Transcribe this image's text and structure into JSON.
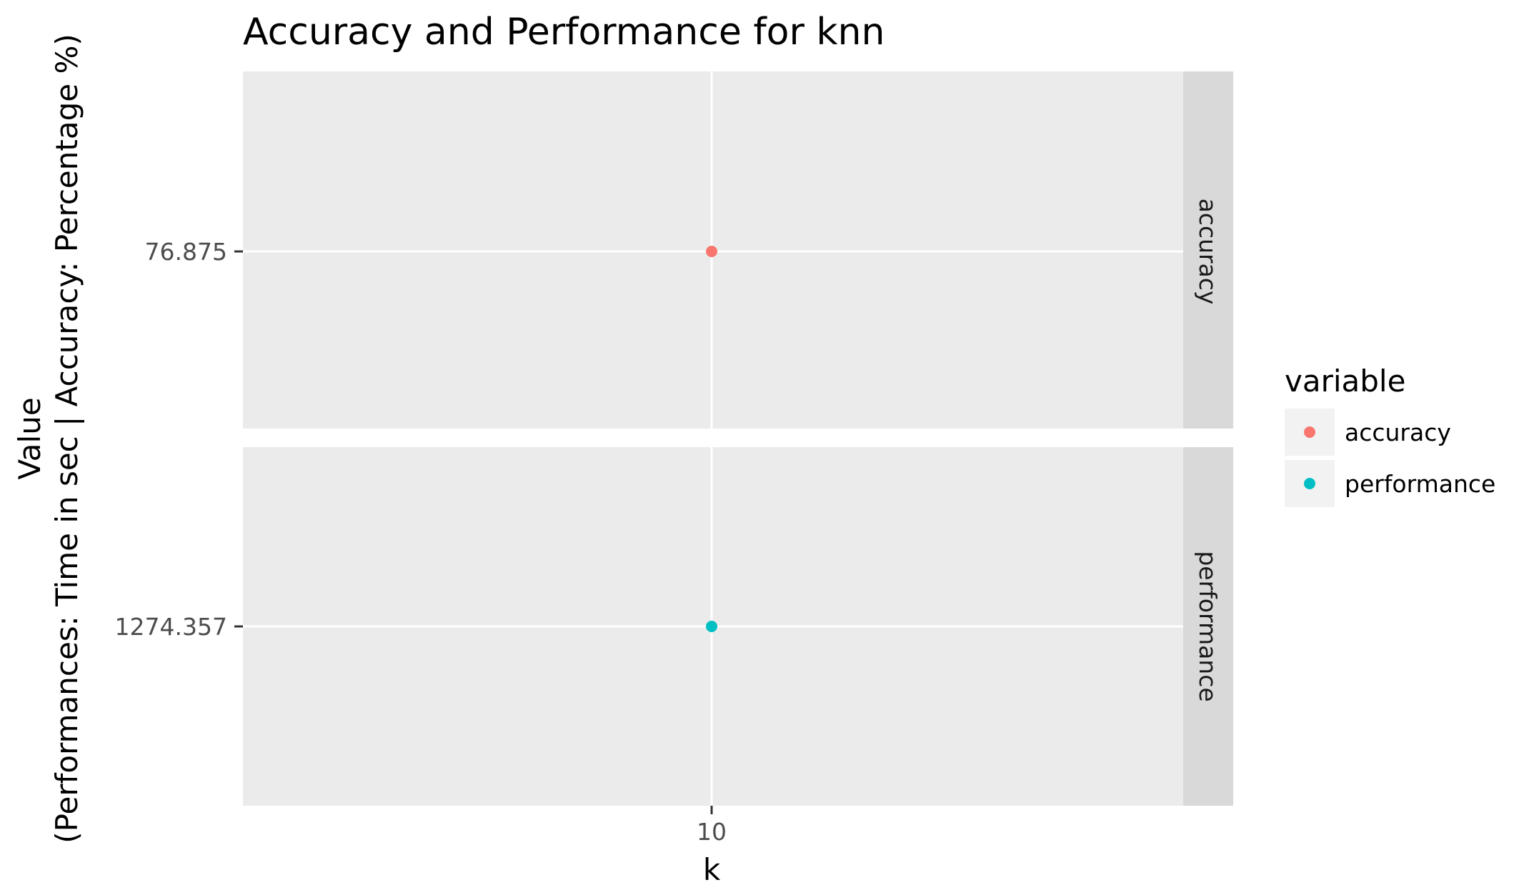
{
  "chart_data": {
    "type": "scatter",
    "title": "Accuracy and Performance for knn",
    "xlabel": "k",
    "ylabel_line1": "Value",
    "ylabel_line2": "(Performances: Time in sec | Accuracy: Percentage %)",
    "x_ticks": [
      "10"
    ],
    "facets": [
      {
        "strip": "accuracy",
        "y_tick": "76.875",
        "points": [
          {
            "x": "10",
            "y": 76.875
          }
        ],
        "color": "#F8766D"
      },
      {
        "strip": "performance",
        "y_tick": "1274.357",
        "points": [
          {
            "x": "10",
            "y": 1274.357
          }
        ],
        "color": "#00BFC4"
      }
    ],
    "legend": {
      "title": "variable",
      "position": "right",
      "entries": [
        {
          "label": "accuracy",
          "color": "#F8766D"
        },
        {
          "label": "performance",
          "color": "#00BFC4"
        }
      ]
    },
    "grid": true,
    "panel_background": "#EBEBEB",
    "strip_background": "#D9D9D9"
  }
}
